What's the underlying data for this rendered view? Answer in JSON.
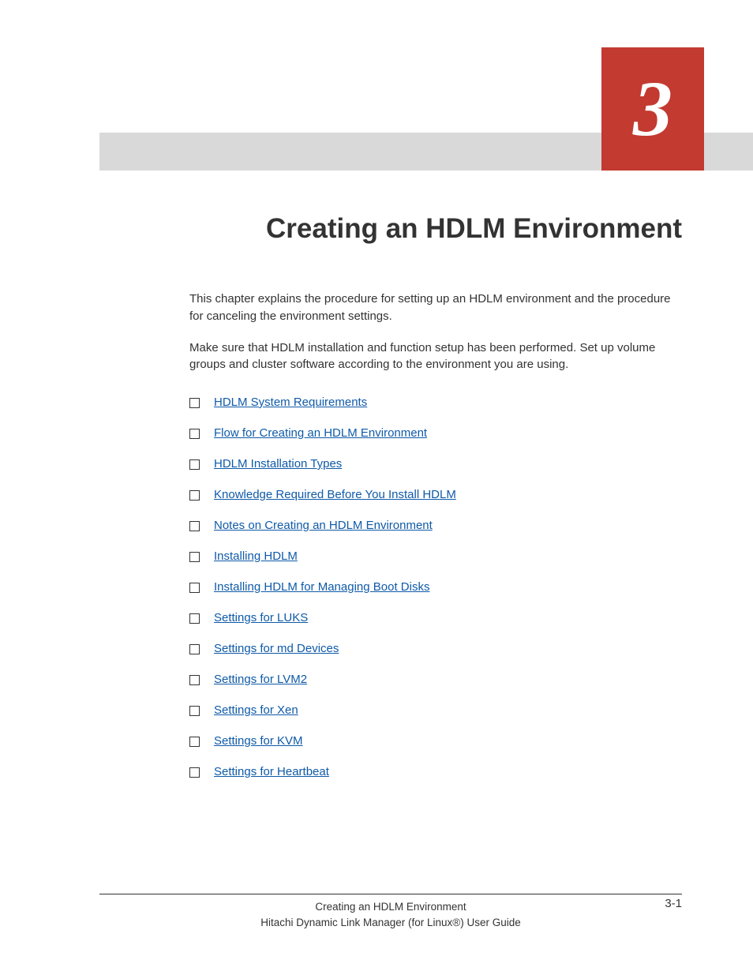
{
  "chapter": {
    "number": "3",
    "number_color": "#ffffff",
    "box_color": "#c33a31",
    "band_color": "#d9d9d9",
    "title": "Creating an HDLM Environment",
    "title_fontsize": 35,
    "title_color": "#333333"
  },
  "intro": {
    "para1": "This chapter explains the procedure for setting up an HDLM environment and the procedure for canceling the environment settings.",
    "para2": "Make sure that HDLM installation and function setup has been performed. Set up volume groups and cluster software according to the environment you are using."
  },
  "toc": {
    "link_color": "#0f5aa8",
    "items": [
      {
        "label": "HDLM System Requirements"
      },
      {
        "label": "Flow for Creating an HDLM Environment"
      },
      {
        "label": "HDLM Installation Types"
      },
      {
        "label": "Knowledge Required Before You Install HDLM"
      },
      {
        "label": "Notes on Creating an HDLM Environment"
      },
      {
        "label": "Installing HDLM"
      },
      {
        "label": "Installing HDLM for Managing Boot Disks"
      },
      {
        "label": "Settings for LUKS"
      },
      {
        "label": "Settings for md Devices"
      },
      {
        "label": "Settings for LVM2"
      },
      {
        "label": "Settings for Xen"
      },
      {
        "label": "Settings for KVM"
      },
      {
        "label": "Settings for Heartbeat"
      }
    ]
  },
  "footer": {
    "section_title": "Creating an HDLM Environment",
    "book_title": "Hitachi Dynamic Link Manager (for Linux®) User Guide",
    "page_number": "3-1"
  },
  "colors": {
    "background": "#ffffff",
    "text": "#333333"
  }
}
